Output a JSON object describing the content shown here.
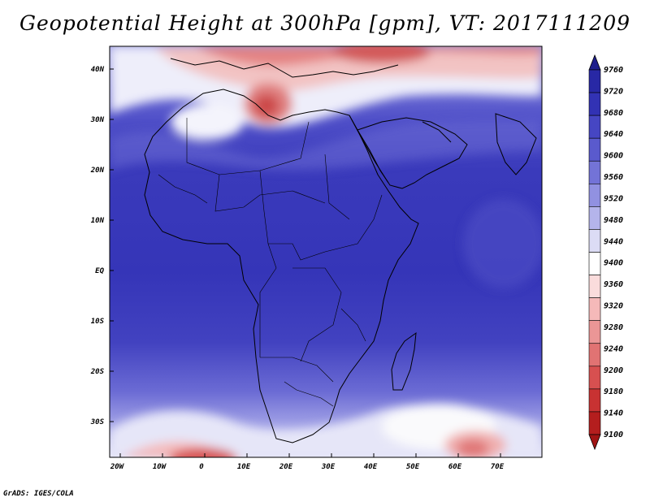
{
  "title": "Geopotential Height at 300hPa [gpm], VT: 2017111209",
  "credit": "GrADS: IGES/COLA",
  "map": {
    "lat_labels": [
      "40N",
      "30N",
      "20N",
      "10N",
      "EQ",
      "10S",
      "20S",
      "30S"
    ],
    "lon_labels": [
      "20W",
      "10W",
      "0",
      "10E",
      "20E",
      "30E",
      "40E",
      "50E",
      "60E",
      "70E"
    ]
  },
  "colorbar": {
    "levels": [
      "9760",
      "9720",
      "9680",
      "9640",
      "9600",
      "9560",
      "9520",
      "9480",
      "9440",
      "9400",
      "9360",
      "9320",
      "9280",
      "9240",
      "9200",
      "9180",
      "9140",
      "9100"
    ],
    "colors": [
      "#1e1e8c",
      "#2828a5",
      "#3232b4",
      "#4646c3",
      "#5a5acd",
      "#7373d7",
      "#9191e1",
      "#b4b4eb",
      "#dcdcf5",
      "#ffffff",
      "#fadcdc",
      "#f5b9b9",
      "#eb9696",
      "#e17373",
      "#d75050",
      "#c83232",
      "#b41e1e",
      "#a01414"
    ]
  }
}
